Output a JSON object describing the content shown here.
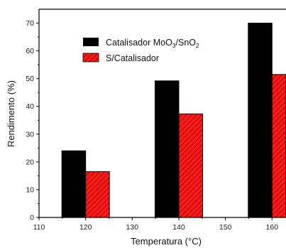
{
  "chart_data": {
    "type": "bar",
    "xlabel": "Temperatura (°C)",
    "ylabel": "Rendimento (%)",
    "xlim": [
      110,
      163
    ],
    "ylim": [
      0,
      75
    ],
    "xticks": [
      110,
      120,
      130,
      140,
      150,
      160
    ],
    "yticks": [
      0,
      10,
      20,
      30,
      40,
      50,
      60,
      70
    ],
    "grid": false,
    "legend_position": "top-center",
    "categories": [
      120,
      140,
      160
    ],
    "series": [
      {
        "name": "Catalisador MoO3/SnO2",
        "legend_main": "Catalisador MoO",
        "legend_sub1": "3",
        "legend_mid": "/SnO",
        "legend_sub2": "2",
        "color": "#000000",
        "pattern": "solid",
        "values": [
          24,
          49.2,
          70
        ]
      },
      {
        "name": "S/Catalisador",
        "color": "#ff1a1a",
        "pattern": "hatched",
        "values": [
          16.5,
          37.3,
          51.5
        ]
      }
    ]
  }
}
